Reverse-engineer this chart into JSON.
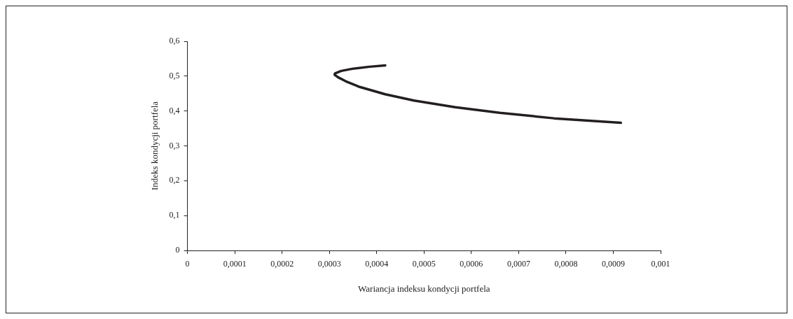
{
  "chart_data": {
    "type": "line",
    "xlabel": "Wariancja indeksu kondycji portfela",
    "ylabel": "Indeks kondycji portfela",
    "x": [
      0.000418,
      0.000385,
      0.000348,
      0.000325,
      0.000312,
      0.000311,
      0.000318,
      0.000335,
      0.000364,
      0.000418,
      0.000479,
      0.000566,
      0.00066,
      0.000775,
      0.000916
    ],
    "series": [
      {
        "color": "#231f20",
        "values": [
          0.531,
          0.527,
          0.521,
          0.515,
          0.508,
          0.504,
          0.497,
          0.485,
          0.469,
          0.448,
          0.43,
          0.411,
          0.395,
          0.379,
          0.366
        ]
      }
    ],
    "xlim": [
      0,
      0.001
    ],
    "xticks": [
      0,
      {
        "value": 0.0001,
        "label": "0,0001"
      },
      {
        "value": 0.0002,
        "label": "0,0002"
      },
      {
        "value": 0.0003,
        "label": "0,0003"
      },
      {
        "value": 0.0004,
        "label": "0,0004"
      },
      {
        "value": 0.0005,
        "label": "0,0005"
      },
      {
        "value": 0.0006,
        "label": "0,0006"
      },
      {
        "value": 0.0007,
        "label": "0,0007"
      },
      {
        "value": 0.0008,
        "label": "0,0008"
      },
      {
        "value": 0.0009,
        "label": "0,0009"
      },
      {
        "value": 0.001,
        "label": "0,001"
      }
    ],
    "ylim": [
      0,
      0.6
    ],
    "yticks": [
      0,
      {
        "value": 0.1,
        "label": "0,1"
      },
      {
        "value": 0.2,
        "label": "0,2"
      },
      {
        "value": 0.3,
        "label": "0,3"
      },
      {
        "value": 0.4,
        "label": "0,4"
      },
      {
        "value": 0.5,
        "label": "0,5"
      },
      {
        "value": 0.6,
        "label": "0,6"
      }
    ],
    "grid": false,
    "legend": false,
    "marker": "none",
    "line_style": "solid"
  }
}
